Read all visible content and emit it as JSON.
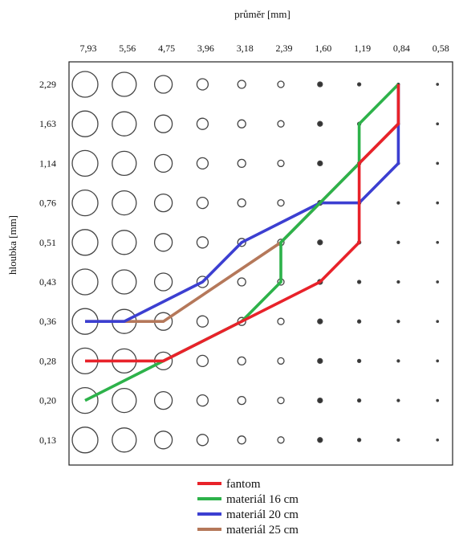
{
  "chart_data": {
    "type": "line",
    "xlabel": "průměr [mm]",
    "ylabel": "hloubka [mm]",
    "x_categories": [
      "7,93",
      "5,56",
      "4,75",
      "3,96",
      "3,18",
      "2,39",
      "1,60",
      "1,19",
      "0,84",
      "0,58"
    ],
    "y_categories": [
      "2,29",
      "1,63",
      "1,14",
      "0,76",
      "0,51",
      "0,43",
      "0,36",
      "0,28",
      "0,20",
      "0,13"
    ],
    "legend_position": "bottom",
    "colors": {
      "fantom": "#e8222a",
      "material16": "#2db24a",
      "material20": "#3c3fd1",
      "material25": "#b5785a"
    },
    "series": [
      {
        "name": "fantom",
        "color": "#e8222a",
        "points": [
          {
            "x": "7,93",
            "y": "0,28"
          },
          {
            "x": "4,75",
            "y": "0,28"
          },
          {
            "x": "3,18",
            "y": "0,36"
          },
          {
            "x": "1,60",
            "y": "0,43"
          },
          {
            "x": "1,19",
            "y": "0,51"
          },
          {
            "x": "1,19",
            "y": "1,14"
          },
          {
            "x": "0,84",
            "y": "1,63"
          },
          {
            "x": "0,84",
            "y": "2,29"
          }
        ]
      },
      {
        "name": "materiál 16 cm",
        "color": "#2db24a",
        "points": [
          {
            "x": "7,93",
            "y": "0,20"
          },
          {
            "x": "4,75",
            "y": "0,28"
          },
          {
            "x": "3,18",
            "y": "0,36"
          },
          {
            "x": "2,39",
            "y": "0,43"
          },
          {
            "x": "2,39",
            "y": "0,51"
          },
          {
            "x": "1,60",
            "y": "0,76"
          },
          {
            "x": "1,19",
            "y": "1,14"
          },
          {
            "x": "1,19",
            "y": "1,63"
          },
          {
            "x": "0,84",
            "y": "2,29"
          }
        ]
      },
      {
        "name": "materiál 20 cm",
        "color": "#3c3fd1",
        "points": [
          {
            "x": "7,93",
            "y": "0,36"
          },
          {
            "x": "5,56",
            "y": "0,36"
          },
          {
            "x": "3,96",
            "y": "0,43"
          },
          {
            "x": "3,18",
            "y": "0,51"
          },
          {
            "x": "1,60",
            "y": "0,76"
          },
          {
            "x": "1,19",
            "y": "0,76"
          },
          {
            "x": "0,84",
            "y": "1,14"
          },
          {
            "x": "0,84",
            "y": "2,29"
          }
        ]
      },
      {
        "name": "materiál 25 cm",
        "color": "#b5785a",
        "points": [
          {
            "x": "7,93",
            "y": "0,36"
          },
          {
            "x": "4,75",
            "y": "0,36"
          },
          {
            "x": "2,39",
            "y": "0,51"
          },
          {
            "x": "1,60",
            "y": "0,76"
          },
          {
            "x": "1,19",
            "y": "1,14"
          },
          {
            "x": "0,84",
            "y": "1,63"
          },
          {
            "x": "0,84",
            "y": "2,29"
          }
        ]
      }
    ],
    "legend": [
      "fantom",
      "materiál 16 cm",
      "materiál 20 cm",
      "materiál 25 cm"
    ]
  }
}
